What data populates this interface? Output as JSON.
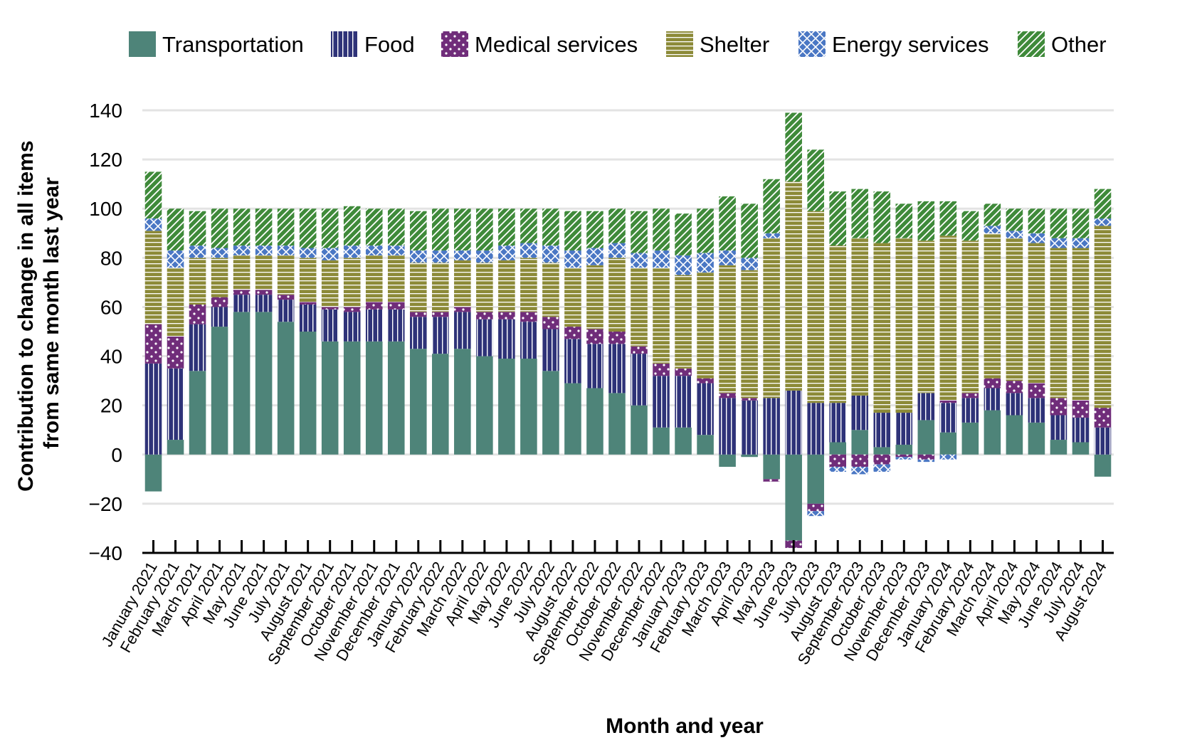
{
  "chart_data": {
    "type": "bar",
    "stacked": true,
    "xlabel": "Month and year",
    "ylabel_lines": [
      "Contribution to change in all items",
      "from same month last year"
    ],
    "ylim": [
      -40,
      140
    ],
    "yticks": [
      "140",
      "120",
      "100",
      "80",
      "60",
      "40",
      "20",
      "0",
      "−20",
      "−40"
    ],
    "ytick_values": [
      140,
      120,
      100,
      80,
      60,
      40,
      20,
      0,
      -20,
      -40
    ],
    "grid": true,
    "legend_position": "top",
    "categories": [
      "January 2021",
      "February 2021",
      "March 2021",
      "April 2021",
      "May 2021",
      "June 2021",
      "July 2021",
      "August 2021",
      "September 2021",
      "October 2021",
      "November 2021",
      "December 2021",
      "January 2022",
      "February 2022",
      "March 2022",
      "April 2022",
      "May 2022",
      "June 2022",
      "July 2022",
      "August 2022",
      "September 2022",
      "October 2022",
      "November 2022",
      "December 2022",
      "January 2023",
      "February 2023",
      "March 2023",
      "April 2023",
      "May 2023",
      "June 2023",
      "July 2023",
      "August 2023",
      "September 2023",
      "October 2023",
      "November 2023",
      "December 2023",
      "January 2024",
      "February 2024",
      "March 2024",
      "April 2024",
      "May 2024",
      "June 2024",
      "July 2024",
      "August 2024"
    ],
    "series": [
      {
        "name": "Transportation",
        "color": "#4e8479",
        "pattern": "solid",
        "values": [
          -15,
          6,
          34,
          52,
          58,
          58,
          54,
          50,
          46,
          46,
          46,
          46,
          43,
          41,
          43,
          40,
          39,
          39,
          34,
          29,
          27,
          25,
          20,
          11,
          11,
          8,
          -5,
          -1,
          -10,
          -35,
          -20,
          5,
          10,
          3,
          4,
          14,
          9,
          13,
          18,
          16,
          13,
          6,
          5,
          -9
        ]
      },
      {
        "name": "Food",
        "color": "#2e3278",
        "pattern": "vertical-stripes",
        "values": [
          37,
          29,
          19,
          8,
          7,
          7,
          9,
          11,
          13,
          12,
          13,
          13,
          13,
          15,
          15,
          15,
          16,
          15,
          17,
          18,
          18,
          20,
          21,
          21,
          21,
          21,
          23,
          22,
          23,
          26,
          21,
          16,
          14,
          14,
          13,
          11,
          12,
          10,
          9,
          9,
          10,
          10,
          10,
          11
        ]
      },
      {
        "name": "Medical services",
        "color": "#702d7a",
        "pattern": "dots",
        "values": [
          16,
          13,
          8,
          4,
          2,
          2,
          2,
          1,
          1,
          2,
          3,
          3,
          2,
          2,
          2,
          3,
          3,
          4,
          5,
          5,
          6,
          5,
          3,
          5,
          3,
          2,
          2,
          1,
          -1,
          -3,
          -3,
          -5,
          -5,
          -4,
          -1,
          -2,
          1,
          2,
          4,
          5,
          6,
          7,
          7,
          8
        ]
      },
      {
        "name": "Shelter",
        "color": "#8c8a38",
        "pattern": "horizontal-stripes",
        "values": [
          38,
          28,
          19,
          16,
          14,
          14,
          16,
          18,
          19,
          20,
          19,
          19,
          20,
          20,
          19,
          20,
          21,
          22,
          22,
          24,
          26,
          30,
          32,
          39,
          38,
          43,
          52,
          52,
          65,
          85,
          78,
          64,
          64,
          69,
          71,
          62,
          67,
          62,
          59,
          58,
          57,
          61,
          62,
          74
        ]
      },
      {
        "name": "Energy services",
        "color": "#4a77c4",
        "pattern": "crosshatch",
        "values": [
          5,
          7,
          5,
          4,
          4,
          4,
          4,
          4,
          5,
          5,
          4,
          4,
          5,
          5,
          4,
          5,
          6,
          6,
          7,
          7,
          7,
          6,
          6,
          7,
          8,
          8,
          6,
          5,
          2,
          0,
          -2,
          -2,
          -3,
          -3,
          -1,
          -1,
          -2,
          0,
          3,
          3,
          4,
          4,
          4,
          3
        ]
      },
      {
        "name": "Other",
        "color": "#3f8a3a",
        "pattern": "diagonal-stripes",
        "values": [
          19,
          17,
          14,
          16,
          15,
          15,
          15,
          16,
          16,
          16,
          15,
          15,
          16,
          17,
          17,
          17,
          15,
          14,
          15,
          16,
          15,
          14,
          17,
          17,
          17,
          18,
          22,
          22,
          22,
          28,
          25,
          22,
          20,
          21,
          14,
          16,
          14,
          12,
          9,
          9,
          10,
          12,
          12,
          12
        ]
      }
    ]
  }
}
